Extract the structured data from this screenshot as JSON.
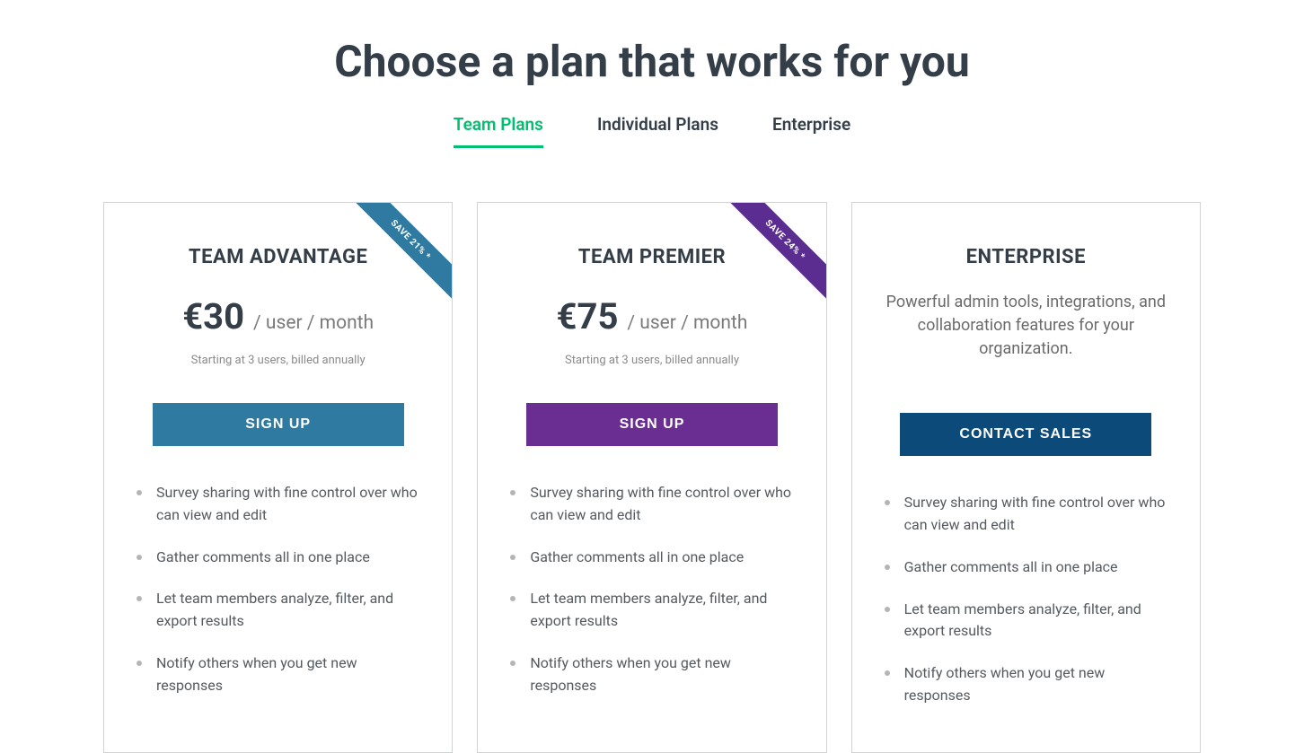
{
  "header": {
    "title": "Choose a plan that works for you"
  },
  "tabs": {
    "items": [
      {
        "label": "Team Plans",
        "active": true
      },
      {
        "label": "Individual Plans",
        "active": false
      },
      {
        "label": "Enterprise",
        "active": false
      }
    ]
  },
  "plans": [
    {
      "id": "team-advantage",
      "title": "TEAM ADVANTAGE",
      "price": "€30",
      "unit": "/ user / month",
      "billing_note": "Starting at 3 users, billed annually",
      "ribbon_text": "SAVE 21% *",
      "ribbon_color": "#2f7aa1",
      "cta_label": "SIGN UP",
      "cta_color": "#2f7aa1",
      "features": [
        "Survey sharing with fine control over who can view and edit",
        "Gather comments all in one place",
        "Let team members analyze, filter, and export results",
        "Notify others when you get new responses"
      ]
    },
    {
      "id": "team-premier",
      "title": "TEAM PREMIER",
      "price": "€75",
      "unit": "/ user / month",
      "billing_note": "Starting at 3 users, billed annually",
      "ribbon_text": "SAVE 24% *",
      "ribbon_color": "#5b2d90",
      "cta_label": "SIGN UP",
      "cta_color": "#6a2e92",
      "features": [
        "Survey sharing with fine control over who can view and edit",
        "Gather comments all in one place",
        "Let team members analyze, filter, and export results",
        "Notify others when you get new responses"
      ]
    },
    {
      "id": "enterprise",
      "title": "ENTERPRISE",
      "description": "Powerful admin tools, integrations, and collaboration features for your organization.",
      "cta_label": "CONTACT SALES",
      "cta_color": "#0c4a7a",
      "features": [
        "Survey sharing with fine control over who can view and edit",
        "Gather comments all in one place",
        "Let team members analyze, filter, and export results",
        "Notify others when you get new responses"
      ]
    }
  ],
  "colors": {
    "accent_green": "#00bf6f",
    "text_dark": "#333e48",
    "text_muted": "#6b6b6b",
    "border": "#d0d2d3"
  }
}
